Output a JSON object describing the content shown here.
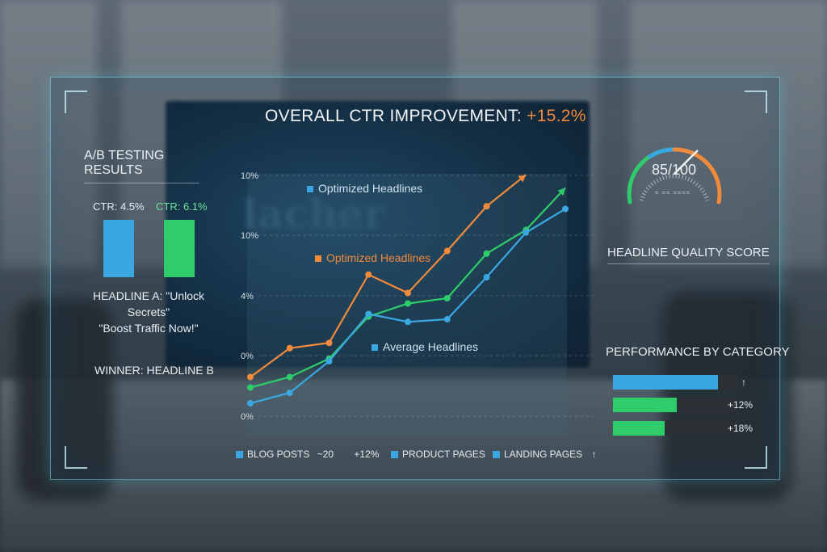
{
  "title": {
    "prefix": "OVERALL CTR IMPROVEMENT: ",
    "value": "+15.2%"
  },
  "ab_testing": {
    "title": "A/B TESTING RESULTS",
    "a_ctr": "CTR: 4.5%",
    "b_ctr": "CTR: 6.1%",
    "headline_a": "HEADLINE A: \"Unlock Secrets\"",
    "headline_b": "\"Boost Traffic Now!\"",
    "winner": "WINNER: HEADLINE B"
  },
  "gauge": {
    "value": "85/100",
    "sub": "≈ ≈≈ ≈≈≈≈",
    "label": "HEADLINE QUALITY SCORE",
    "score": 85
  },
  "performance": {
    "title": "PERFORMANCE BY CATEGORY",
    "rows": [
      {
        "fill": 0.84,
        "color": "#3aa7e0",
        "label": "↑"
      },
      {
        "fill": 0.51,
        "color": "#2ecc6a",
        "label": "+12%"
      },
      {
        "fill": 0.41,
        "color": "#2ecc6a",
        "label": "+18%"
      }
    ]
  },
  "bottom_legend": {
    "blog": "BLOG POSTS",
    "blog_val": "~20",
    "blog_pct": "+12%",
    "product": "PRODUCT PAGES",
    "landing": "LANDING PAGES",
    "landing_arrow": "↑"
  },
  "colors": {
    "blue": "#3aa7e0",
    "green": "#2ecc6a",
    "orange": "#f28a3c"
  },
  "chart_data": {
    "type": "line",
    "x": [
      1,
      2,
      3,
      4,
      5,
      6,
      7,
      8,
      9
    ],
    "yticks": [
      "10%",
      "10%",
      "4%",
      "0%",
      "0%"
    ],
    "ylim": [
      0,
      10
    ],
    "series": [
      {
        "name": "Optimized Headlines",
        "color": "#f28a3c",
        "values": [
          1.8,
          2.9,
          3.1,
          5.7,
          5.0,
          6.6,
          8.3,
          9.5,
          null
        ],
        "arrow": true
      },
      {
        "name": "Optimized Headlines",
        "color": "#2ecc6a",
        "values": [
          1.4,
          1.8,
          2.5,
          4.1,
          4.6,
          4.8,
          6.5,
          7.4,
          9.0
        ],
        "arrow": true
      },
      {
        "name": "Average Headlines",
        "color": "#3aa7e0",
        "values": [
          0.8,
          1.2,
          2.4,
          4.2,
          3.9,
          4.0,
          5.6,
          7.3,
          8.2
        ],
        "arrow": false
      }
    ]
  }
}
